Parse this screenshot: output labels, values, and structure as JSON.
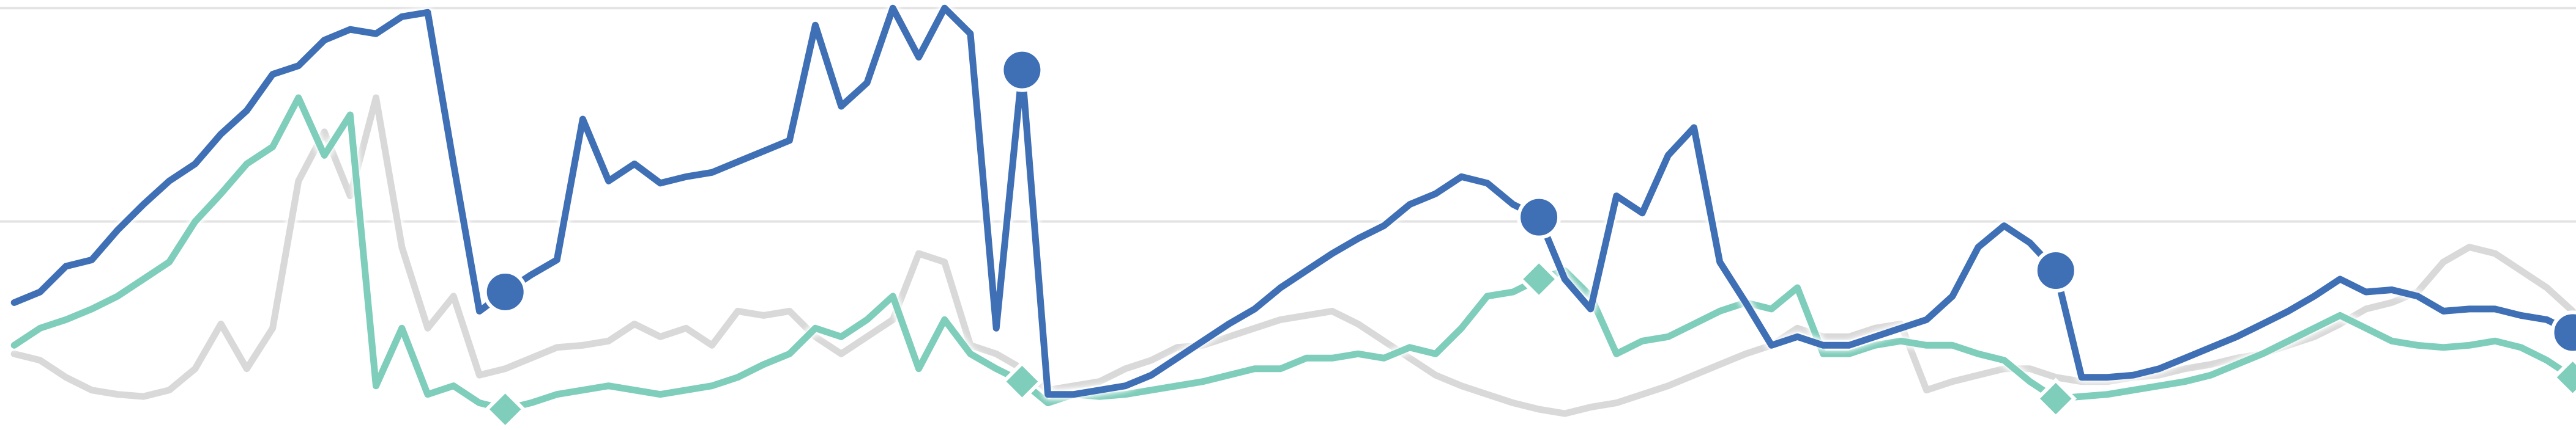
{
  "chart_data": {
    "type": "line",
    "grid": true,
    "xlim": [
      0.45,
      100.13
    ],
    "ylim": [
      2.3,
      203.8
    ],
    "yticks": [
      100,
      200
    ],
    "x": [
      1,
      2,
      3,
      4,
      5,
      6,
      7,
      8,
      9,
      10,
      11,
      12,
      13,
      14,
      15,
      16,
      17,
      18,
      19,
      20,
      21,
      22,
      23,
      24,
      25,
      26,
      27,
      28,
      29,
      30,
      31,
      32,
      33,
      34,
      35,
      36,
      37,
      38,
      39,
      40,
      41,
      42,
      43,
      44,
      45,
      46,
      47,
      48,
      49,
      50,
      51,
      52,
      53,
      54,
      55,
      56,
      57,
      58,
      59,
      60,
      61,
      62,
      63,
      64,
      65,
      66,
      67,
      68,
      69,
      70,
      71,
      72,
      73,
      74,
      75,
      76,
      77,
      78,
      79,
      80,
      81,
      82,
      83,
      84,
      85,
      86,
      87,
      88,
      89,
      90,
      91,
      92,
      93,
      94,
      95,
      96,
      97,
      98,
      99,
      100
    ],
    "series": [
      {
        "color": "#d9d9d9",
        "values": [
          38,
          35,
          27,
          21,
          19,
          18,
          21,
          31,
          52,
          31,
          50,
          119,
          142,
          112,
          158,
          88,
          50,
          65,
          28,
          31,
          36,
          41,
          42,
          44,
          52,
          46,
          50,
          42,
          58,
          56,
          58,
          46,
          38,
          46,
          54,
          85,
          81,
          42,
          38,
          31,
          21,
          23,
          25,
          31,
          35,
          41,
          42,
          46,
          50,
          54,
          56,
          58,
          52,
          44,
          36,
          28,
          23,
          19,
          15,
          12,
          10,
          13,
          15,
          19,
          23,
          28,
          33,
          38,
          42,
          50,
          46,
          46,
          50,
          52,
          21,
          25,
          28,
          31,
          31,
          27,
          25,
          25,
          27,
          28,
          31,
          33,
          36,
          38,
          42,
          46,
          52,
          59,
          62,
          67,
          81,
          88,
          85,
          77,
          69,
          58
        ]
      },
      {
        "color": "#7fcdbb",
        "marker": "diamond",
        "marker_x": [
          20,
          40,
          60,
          80,
          100
        ],
        "values": [
          42,
          50,
          54,
          59,
          65,
          73,
          81,
          100,
          113,
          127,
          135,
          158,
          131,
          150,
          23,
          50,
          19,
          23,
          15,
          12,
          15,
          19,
          21,
          23,
          21,
          19,
          21,
          23,
          27,
          33,
          38,
          50,
          46,
          54,
          65,
          31,
          54,
          38,
          31,
          25,
          15,
          19,
          18,
          19,
          21,
          23,
          25,
          28,
          31,
          31,
          36,
          36,
          38,
          36,
          41,
          38,
          50,
          65,
          67,
          73,
          77,
          65,
          38,
          44,
          46,
          52,
          58,
          62,
          59,
          69,
          38,
          38,
          42,
          44,
          42,
          42,
          38,
          35,
          25,
          17,
          18,
          19,
          21,
          23,
          25,
          28,
          33,
          38,
          44,
          50,
          56,
          50,
          44,
          42,
          41,
          42,
          44,
          41,
          35,
          27
        ]
      },
      {
        "color": "#3f6fb5",
        "marker": "circle",
        "marker_x": [
          20,
          40,
          60,
          80,
          100
        ],
        "values": [
          62,
          67,
          79,
          82,
          96,
          108,
          119,
          127,
          141,
          152,
          169,
          173,
          185,
          190,
          188,
          196,
          198,
          127,
          58,
          67,
          75,
          82,
          148,
          119,
          127,
          118,
          121,
          123,
          128,
          133,
          138,
          192,
          154,
          165,
          200,
          177,
          200,
          188,
          50,
          171,
          19,
          19,
          21,
          23,
          28,
          36,
          44,
          52,
          59,
          69,
          77,
          85,
          92,
          98,
          108,
          113,
          121,
          118,
          108,
          102,
          73,
          59,
          112,
          104,
          131,
          144,
          81,
          62,
          42,
          46,
          42,
          42,
          46,
          50,
          54,
          65,
          88,
          98,
          90,
          77,
          27,
          27,
          28,
          31,
          36,
          41,
          46,
          52,
          58,
          65,
          73,
          67,
          68,
          65,
          58,
          59,
          59,
          56,
          54,
          48
        ]
      }
    ]
  }
}
